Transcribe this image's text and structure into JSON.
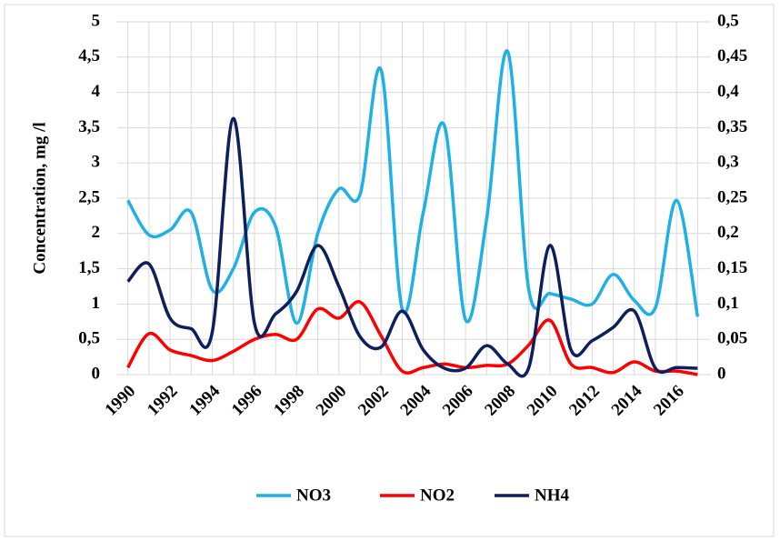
{
  "chart_data": {
    "type": "line",
    "y_label": "Concentration, mg /l",
    "x": [
      1990,
      1991,
      1992,
      1993,
      1994,
      1995,
      1996,
      1997,
      1998,
      1999,
      2000,
      2001,
      2002,
      2003,
      2004,
      2005,
      2006,
      2007,
      2008,
      2009,
      2010,
      2011,
      2012,
      2013,
      2014,
      2015,
      2016,
      2017
    ],
    "xlim": [
      1989.5,
      2017.5
    ],
    "xticks": [
      1990,
      1992,
      1994,
      1996,
      1998,
      2000,
      2002,
      2004,
      2006,
      2008,
      2010,
      2012,
      2014,
      2016
    ],
    "ylim": [
      0,
      5
    ],
    "yticks": [
      0,
      {
        "value": 0.5,
        "label": "0,5"
      },
      1,
      {
        "value": 1.5,
        "label": "1,5"
      },
      2,
      {
        "value": 2.5,
        "label": "2,5"
      },
      3,
      {
        "value": 3.5,
        "label": "3,5"
      },
      4,
      {
        "value": 4.5,
        "label": "4,5"
      },
      5
    ],
    "y2lim": [
      0,
      0.5
    ],
    "y2ticks": [
      0,
      {
        "value": 0.05,
        "label": "0,05"
      },
      {
        "value": 0.1,
        "label": "0,1"
      },
      {
        "value": 0.15,
        "label": "0,15"
      },
      {
        "value": 0.2,
        "label": "0,2"
      },
      {
        "value": 0.25,
        "label": "0,25"
      },
      {
        "value": 0.3,
        "label": "0,3"
      },
      {
        "value": 0.35,
        "label": "0,35"
      },
      {
        "value": 0.4,
        "label": "0,4"
      },
      {
        "value": 0.45,
        "label": "0,45"
      },
      {
        "value": 0.5,
        "label": "0,5"
      }
    ],
    "grid": true,
    "legend": "bottom",
    "series": [
      {
        "name": "NO3",
        "color": "#1fb0e6",
        "values": [
          2.47,
          1.98,
          2.05,
          2.3,
          1.2,
          1.5,
          2.3,
          2.1,
          0.73,
          2.0,
          2.63,
          2.55,
          4.32,
          0.93,
          2.3,
          3.53,
          0.78,
          2.2,
          4.58,
          1.2,
          1.15,
          1.07,
          1.0,
          1.42,
          1.05,
          0.95,
          2.47,
          0.82
        ]
      },
      {
        "name": "NO2",
        "color": "#ff0000",
        "values": [
          0.1,
          0.58,
          0.35,
          0.27,
          0.2,
          0.33,
          0.5,
          0.57,
          0.5,
          0.93,
          0.8,
          1.03,
          0.55,
          0.05,
          0.1,
          0.15,
          0.1,
          0.13,
          0.15,
          0.42,
          0.77,
          0.15,
          0.1,
          0.03,
          0.18,
          0.05,
          0.05,
          0
        ]
      },
      {
        "name": "NH4",
        "color": "#0d1f5c",
        "axis": "y2",
        "values": [
          0.132,
          0.157,
          0.08,
          0.065,
          0.06,
          0.363,
          0.073,
          0.086,
          0.118,
          0.183,
          0.125,
          0.054,
          0.039,
          0.09,
          0.035,
          0.009,
          0.009,
          0.041,
          0.015,
          0.01,
          0.183,
          0.035,
          0.048,
          0.067,
          0.09,
          0.009,
          0.01,
          0.009
        ]
      }
    ]
  }
}
